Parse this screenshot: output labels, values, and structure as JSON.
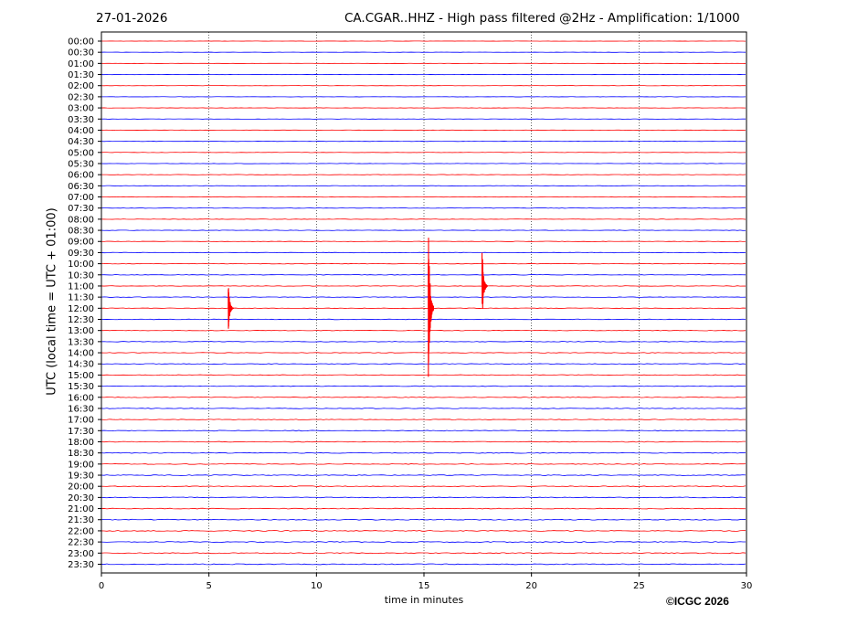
{
  "header": {
    "date": "27-01-2026",
    "title": "CA.CGAR..HHZ - High pass filtered @2Hz - Amplification: 1/1000"
  },
  "footer": {
    "copyright": "©ICGC 2026"
  },
  "chart_data": {
    "type": "line",
    "title": "CA.CGAR..HHZ - High pass filtered @2Hz - Amplification: 1/1000",
    "xlabel": "time in minutes",
    "ylabel": "UTC (local time = UTC + 01:00)",
    "xlim": [
      0,
      30
    ],
    "x_ticks": [
      "0",
      "5",
      "10",
      "15",
      "20",
      "25",
      "30"
    ],
    "y_ticks": [
      "00:00",
      "00:30",
      "01:00",
      "01:30",
      "02:00",
      "02:30",
      "03:00",
      "03:30",
      "04:00",
      "04:30",
      "05:00",
      "05:30",
      "06:00",
      "06:30",
      "07:00",
      "07:30",
      "08:00",
      "08:30",
      "09:00",
      "09:30",
      "10:00",
      "10:30",
      "11:00",
      "11:30",
      "12:00",
      "12:30",
      "13:00",
      "13:30",
      "14:00",
      "14:30",
      "15:00",
      "15:30",
      "16:00",
      "16:30",
      "17:00",
      "17:30",
      "18:00",
      "18:30",
      "19:00",
      "19:30",
      "20:00",
      "20:30",
      "21:00",
      "21:30",
      "22:00",
      "22:30",
      "23:00",
      "23:30"
    ],
    "trace_colors": [
      "#ff0000",
      "#0000ff"
    ],
    "grid": "vertical dotted",
    "events": [
      {
        "trace": "12:00",
        "minute": 5.9,
        "amplitude": 1.4
      },
      {
        "trace": "12:00",
        "minute": 15.2,
        "amplitude": 6.0
      },
      {
        "trace": "11:00",
        "minute": 17.7,
        "amplitude": 2.3
      }
    ]
  }
}
